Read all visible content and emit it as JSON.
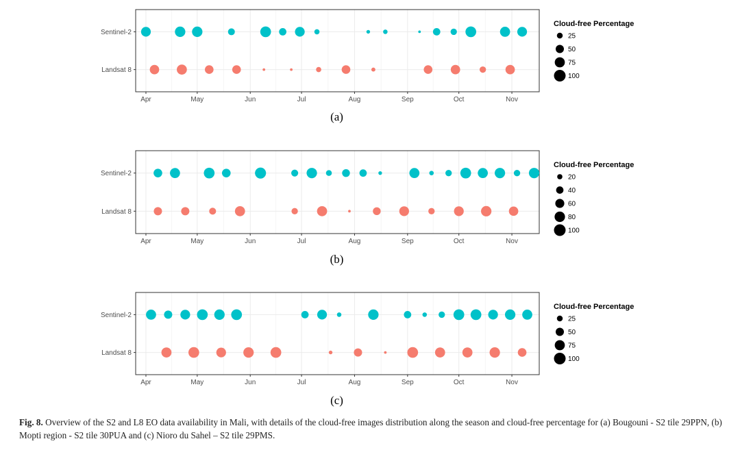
{
  "colors": {
    "sentinel": "#00c1c9",
    "landsat": "#f57c6e",
    "legend": "#000000"
  },
  "caption": {
    "label": "Fig. 8.",
    "text": " Overview of the S2 and L8 EO data availability in Mali, with details of the cloud-free images distribution along the season and cloud-free percentage for (a) Bougouni - S2 tile 29PPN, (b) Mopti region - S2 tile 30PUA and (c) Nioro du Sahel – S2 tile 29PMS."
  },
  "chart_data": [
    {
      "type": "scatter",
      "panel_label": "(a)",
      "categories": [
        "Sentinel-2",
        "Landsat 8"
      ],
      "xticks": [
        "Apr",
        "May",
        "Jun",
        "Jul",
        "Aug",
        "Sep",
        "Oct",
        "Nov"
      ],
      "xlim": [
        "2018-03-26",
        "2018-11-17"
      ],
      "legend": {
        "title": "Cloud-free Percentage",
        "values": [
          25,
          50,
          75,
          100
        ],
        "position": "right"
      },
      "size_max_value": 100,
      "grid": true,
      "series": [
        {
          "name": "Sentinel-2",
          "points": [
            {
              "x": "2018-04-01",
              "size": 70
            },
            {
              "x": "2018-04-21",
              "size": 80
            },
            {
              "x": "2018-05-01",
              "size": 80
            },
            {
              "x": "2018-05-21",
              "size": 35
            },
            {
              "x": "2018-06-10",
              "size": 85
            },
            {
              "x": "2018-06-20",
              "size": 40
            },
            {
              "x": "2018-06-30",
              "size": 70
            },
            {
              "x": "2018-07-10",
              "size": 20
            },
            {
              "x": "2018-08-09",
              "size": 10
            },
            {
              "x": "2018-08-19",
              "size": 15
            },
            {
              "x": "2018-09-08",
              "size": 5
            },
            {
              "x": "2018-09-18",
              "size": 40
            },
            {
              "x": "2018-09-28",
              "size": 30
            },
            {
              "x": "2018-10-08",
              "size": 85
            },
            {
              "x": "2018-10-28",
              "size": 75
            },
            {
              "x": "2018-11-07",
              "size": 70
            }
          ]
        },
        {
          "name": "Landsat 8",
          "points": [
            {
              "x": "2018-04-06",
              "size": 65
            },
            {
              "x": "2018-04-22",
              "size": 75
            },
            {
              "x": "2018-05-08",
              "size": 55
            },
            {
              "x": "2018-05-24",
              "size": 55
            },
            {
              "x": "2018-06-09",
              "size": 5
            },
            {
              "x": "2018-06-25",
              "size": 5
            },
            {
              "x": "2018-07-11",
              "size": 20
            },
            {
              "x": "2018-07-27",
              "size": 55
            },
            {
              "x": "2018-08-12",
              "size": 12
            },
            {
              "x": "2018-09-13",
              "size": 55
            },
            {
              "x": "2018-09-29",
              "size": 65
            },
            {
              "x": "2018-10-15",
              "size": 30
            },
            {
              "x": "2018-10-31",
              "size": 65
            }
          ]
        }
      ]
    },
    {
      "type": "scatter",
      "panel_label": "(b)",
      "categories": [
        "Sentinel-2",
        "Landsat 8"
      ],
      "xticks": [
        "Apr",
        "May",
        "Jun",
        "Jul",
        "Aug",
        "Sep",
        "Oct",
        "Nov"
      ],
      "xlim": [
        "2018-03-26",
        "2018-11-17"
      ],
      "legend": {
        "title": "Cloud-free Percentage",
        "values": [
          20,
          40,
          60,
          80,
          100
        ],
        "position": "right"
      },
      "size_max_value": 100,
      "grid": true,
      "series": [
        {
          "name": "Sentinel-2",
          "points": [
            {
              "x": "2018-04-08",
              "size": 55
            },
            {
              "x": "2018-04-18",
              "size": 75
            },
            {
              "x": "2018-05-08",
              "size": 85
            },
            {
              "x": "2018-05-18",
              "size": 55
            },
            {
              "x": "2018-06-07",
              "size": 90
            },
            {
              "x": "2018-06-27",
              "size": 35
            },
            {
              "x": "2018-07-07",
              "size": 80
            },
            {
              "x": "2018-07-17",
              "size": 25
            },
            {
              "x": "2018-07-27",
              "size": 45
            },
            {
              "x": "2018-08-06",
              "size": 40
            },
            {
              "x": "2018-08-16",
              "size": 10
            },
            {
              "x": "2018-09-05",
              "size": 75
            },
            {
              "x": "2018-09-15",
              "size": 15
            },
            {
              "x": "2018-09-25",
              "size": 30
            },
            {
              "x": "2018-10-05",
              "size": 85
            },
            {
              "x": "2018-10-15",
              "size": 75
            },
            {
              "x": "2018-10-25",
              "size": 80
            },
            {
              "x": "2018-11-04",
              "size": 30
            },
            {
              "x": "2018-11-14",
              "size": 80
            }
          ]
        },
        {
          "name": "Landsat 8",
          "points": [
            {
              "x": "2018-04-08",
              "size": 50
            },
            {
              "x": "2018-04-24",
              "size": 50
            },
            {
              "x": "2018-05-10",
              "size": 35
            },
            {
              "x": "2018-05-26",
              "size": 75
            },
            {
              "x": "2018-06-27",
              "size": 30
            },
            {
              "x": "2018-07-13",
              "size": 75
            },
            {
              "x": "2018-07-29",
              "size": 5
            },
            {
              "x": "2018-08-14",
              "size": 45
            },
            {
              "x": "2018-08-30",
              "size": 70
            },
            {
              "x": "2018-09-15",
              "size": 30
            },
            {
              "x": "2018-10-01",
              "size": 70
            },
            {
              "x": "2018-10-17",
              "size": 80
            },
            {
              "x": "2018-11-02",
              "size": 65
            }
          ]
        }
      ]
    },
    {
      "type": "scatter",
      "panel_label": "(c)",
      "categories": [
        "Sentinel-2",
        "Landsat 8"
      ],
      "xticks": [
        "Apr",
        "May",
        "Jun",
        "Jul",
        "Aug",
        "Sep",
        "Oct",
        "Nov"
      ],
      "xlim": [
        "2018-03-26",
        "2018-11-17"
      ],
      "legend": {
        "title": "Cloud-free Percentage",
        "values": [
          25,
          50,
          75,
          100
        ],
        "position": "right"
      },
      "size_max_value": 100,
      "grid": true,
      "series": [
        {
          "name": "Sentinel-2",
          "points": [
            {
              "x": "2018-04-04",
              "size": 75
            },
            {
              "x": "2018-04-14",
              "size": 50
            },
            {
              "x": "2018-04-24",
              "size": 70
            },
            {
              "x": "2018-05-04",
              "size": 85
            },
            {
              "x": "2018-05-14",
              "size": 80
            },
            {
              "x": "2018-05-24",
              "size": 85
            },
            {
              "x": "2018-07-03",
              "size": 40
            },
            {
              "x": "2018-07-13",
              "size": 70
            },
            {
              "x": "2018-07-23",
              "size": 15
            },
            {
              "x": "2018-08-12",
              "size": 80
            },
            {
              "x": "2018-09-01",
              "size": 40
            },
            {
              "x": "2018-09-11",
              "size": 15
            },
            {
              "x": "2018-09-21",
              "size": 30
            },
            {
              "x": "2018-10-01",
              "size": 85
            },
            {
              "x": "2018-10-11",
              "size": 85
            },
            {
              "x": "2018-10-21",
              "size": 70
            },
            {
              "x": "2018-10-31",
              "size": 80
            },
            {
              "x": "2018-11-10",
              "size": 75
            }
          ]
        },
        {
          "name": "Landsat 8",
          "points": [
            {
              "x": "2018-04-13",
              "size": 75
            },
            {
              "x": "2018-04-29",
              "size": 85
            },
            {
              "x": "2018-05-15",
              "size": 70
            },
            {
              "x": "2018-05-31",
              "size": 80
            },
            {
              "x": "2018-06-16",
              "size": 85
            },
            {
              "x": "2018-07-18",
              "size": 10
            },
            {
              "x": "2018-08-03",
              "size": 50
            },
            {
              "x": "2018-08-19",
              "size": 5
            },
            {
              "x": "2018-09-04",
              "size": 85
            },
            {
              "x": "2018-09-20",
              "size": 75
            },
            {
              "x": "2018-10-06",
              "size": 75
            },
            {
              "x": "2018-10-22",
              "size": 80
            },
            {
              "x": "2018-11-07",
              "size": 55
            }
          ]
        }
      ]
    }
  ]
}
